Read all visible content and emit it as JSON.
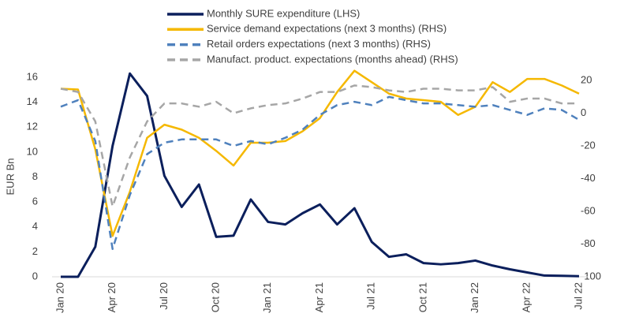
{
  "chart_data": {
    "type": "line",
    "y_label": "EUR Bn",
    "categories": [
      "Jan 20",
      null,
      null,
      "Apr 20",
      null,
      null,
      "Jul 20",
      null,
      null,
      "Oct 20",
      null,
      null,
      "Jan 21",
      null,
      null,
      "Apr 21",
      null,
      null,
      "Jul 21",
      null,
      null,
      "Oct 21",
      null,
      null,
      "Jan 22",
      null,
      null,
      "Apr 22",
      null,
      null,
      "Jul 22"
    ],
    "ylim": [
      0,
      16
    ],
    "yticks": [
      0,
      2,
      4,
      6,
      8,
      10,
      12,
      14,
      16
    ],
    "y2lim": [
      -100,
      22
    ],
    "y2ticks": [
      -100,
      -80,
      -60,
      -40,
      -20,
      0,
      20
    ],
    "series": [
      {
        "name": "Monthly SURE expenditure (LHS)",
        "color": "#0b1f5c",
        "dash": false,
        "axis": "y",
        "values": [
          0,
          0,
          2.4,
          10.5,
          16.3,
          14.5,
          8.1,
          5.6,
          7.4,
          3.2,
          3.3,
          6.2,
          4.4,
          4.2,
          5.1,
          5.8,
          4.2,
          5.5,
          2.8,
          1.6,
          1.8,
          1.1,
          1.0,
          1.1,
          1.3,
          0.9,
          0.6,
          0.35,
          0.1,
          0.08,
          0.05
        ]
      },
      {
        "name": "Service demand expectations (next 3 months) (RHS)",
        "color": "#f5b800",
        "dash": false,
        "axis": "y2",
        "values": [
          15,
          14.5,
          -22,
          -75,
          -48,
          -15,
          -7,
          -10,
          -15,
          -23,
          -32,
          -18,
          -18,
          -17,
          -11,
          -3,
          13,
          26,
          19,
          12,
          9,
          8,
          7,
          -1,
          4,
          19,
          13,
          21,
          21,
          17,
          12
        ]
      },
      {
        "name": "Retail orders expectations (next 3 months) (RHS)",
        "color": "#4f81bd",
        "dash": true,
        "axis": "y2",
        "values": [
          4,
          8,
          -17,
          -83,
          -50,
          -25,
          -18,
          -16,
          -16,
          -16,
          -20,
          -17,
          -19,
          -15,
          -10,
          -1,
          5,
          7,
          5,
          10,
          8,
          6,
          6,
          5,
          4,
          5,
          2,
          -1,
          3,
          2,
          -4
        ]
      },
      {
        "name": "Manufact. product. expectations (months ahead) (RHS)",
        "color": "#a6a6a6",
        "dash": true,
        "axis": "y2",
        "values": [
          15,
          13,
          -5,
          -57,
          -27,
          -5,
          6,
          6,
          4,
          7,
          0,
          3,
          5,
          6,
          9,
          13,
          13,
          17,
          16,
          14,
          13,
          15,
          15,
          14,
          14,
          16,
          7,
          9,
          9,
          6,
          6
        ]
      }
    ]
  }
}
